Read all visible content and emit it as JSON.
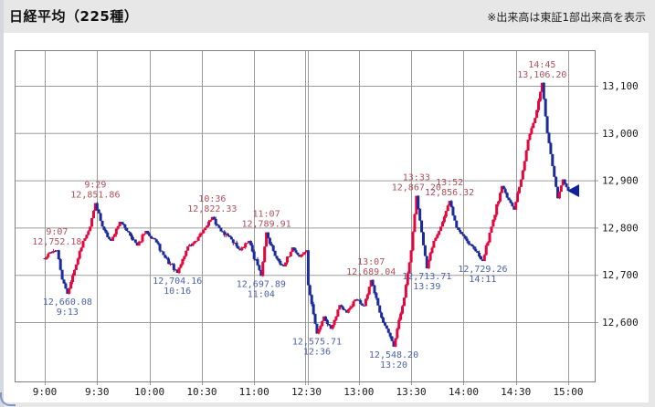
{
  "header": {
    "title": "日経平均（225種）",
    "note": "※出来高は東証1部出来高を表示"
  },
  "chart_data": {
    "type": "candlestick",
    "title": "日経平均（225種）",
    "interval_minutes": 1,
    "sessions": [
      {
        "start": "9:00",
        "end": "11:30"
      },
      {
        "start": "12:30",
        "end": "15:00"
      }
    ],
    "x_axis": {
      "ticks": [
        "9:00",
        "9:30",
        "10:00",
        "10:30",
        "11:00",
        "12:30",
        "13:00",
        "13:30",
        "14:00",
        "14:30",
        "15:00"
      ],
      "session_divider_tick": "12:30"
    },
    "y_axis": {
      "ticks": [
        "13,100",
        "13,000",
        "12,900",
        "12,800",
        "12,700",
        "12,600"
      ],
      "values": [
        13100,
        13000,
        12900,
        12800,
        12700,
        12600
      ],
      "side": "right"
    },
    "ylim": [
      12475,
      13175
    ],
    "grid": true,
    "colors": {
      "up": "#e4063c",
      "down": "#1b2b9e",
      "grid": "#9b9b9b",
      "border": "#808080",
      "tick": "#555555",
      "annotation_high": "#b04f58",
      "annotation_low": "#4c61b0",
      "marker": "#10219a"
    },
    "annotations": [
      {
        "type": "high",
        "time": "9:07",
        "price": 12752.18,
        "price_label": "12,752.18"
      },
      {
        "type": "low",
        "time": "9:13",
        "price": 12660.08,
        "price_label": "12,660.08"
      },
      {
        "type": "high",
        "time": "9:29",
        "price": 12851.86,
        "price_label": "12,851.86"
      },
      {
        "type": "low",
        "time": "10:16",
        "price": 12704.16,
        "price_label": "12,704.16"
      },
      {
        "type": "high",
        "time": "10:36",
        "price": 12822.33,
        "price_label": "12,822.33"
      },
      {
        "type": "low",
        "time": "11:04",
        "price": 12697.89,
        "price_label": "12,697.89"
      },
      {
        "type": "high",
        "time": "11:07",
        "price": 12789.91,
        "price_label": "12,789.91"
      },
      {
        "type": "low",
        "time": "12:36",
        "price": 12575.71,
        "price_label": "12,575.71"
      },
      {
        "type": "high",
        "time": "13:07",
        "price": 12689.04,
        "price_label": "12,689.04"
      },
      {
        "type": "low",
        "time": "13:20",
        "price": 12548.2,
        "price_label": "12,548.20"
      },
      {
        "type": "high",
        "time": "13:33",
        "price": 12867.2,
        "price_label": "12,867.20"
      },
      {
        "type": "low",
        "time": "13:39",
        "price": 12713.71,
        "price_label": "12,713.71"
      },
      {
        "type": "high",
        "time": "13:52",
        "price": 12856.32,
        "price_label": "12,856.32"
      },
      {
        "type": "low",
        "time": "14:11",
        "price": 12729.26,
        "price_label": "12,729.26"
      },
      {
        "type": "high",
        "time": "14:45",
        "price": 13106.2,
        "price_label": "13,106.20"
      }
    ],
    "path_anchors": [
      [
        "9:00",
        12733
      ],
      [
        "9:03",
        12748
      ],
      [
        "9:07",
        12752.18
      ],
      [
        "9:10",
        12690
      ],
      [
        "9:13",
        12660.08
      ],
      [
        "9:18",
        12722
      ],
      [
        "9:22",
        12772
      ],
      [
        "9:26",
        12802
      ],
      [
        "9:29",
        12851.86
      ],
      [
        "9:33",
        12802
      ],
      [
        "9:38",
        12772
      ],
      [
        "9:43",
        12812
      ],
      [
        "9:48",
        12790
      ],
      [
        "9:53",
        12762
      ],
      [
        "9:58",
        12793
      ],
      [
        "10:03",
        12775
      ],
      [
        "10:08",
        12742
      ],
      [
        "10:16",
        12704.16
      ],
      [
        "10:22",
        12760
      ],
      [
        "10:27",
        12772
      ],
      [
        "10:32",
        12800
      ],
      [
        "10:36",
        12822.33
      ],
      [
        "10:41",
        12792
      ],
      [
        "10:46",
        12780
      ],
      [
        "10:52",
        12752
      ],
      [
        "10:57",
        12772
      ],
      [
        "11:04",
        12697.89
      ],
      [
        "11:07",
        12789.91
      ],
      [
        "11:12",
        12740
      ],
      [
        "11:17",
        12718
      ],
      [
        "11:22",
        12758
      ],
      [
        "11:26",
        12738
      ],
      [
        "11:30",
        12752
      ],
      [
        "12:31",
        12678
      ],
      [
        "12:36",
        12575.71
      ],
      [
        "12:40",
        12612
      ],
      [
        "12:44",
        12586
      ],
      [
        "12:49",
        12636
      ],
      [
        "12:53",
        12620
      ],
      [
        "12:58",
        12648
      ],
      [
        "13:03",
        12634
      ],
      [
        "13:07",
        12689.04
      ],
      [
        "13:12",
        12620
      ],
      [
        "13:16",
        12586
      ],
      [
        "13:20",
        12548.2
      ],
      [
        "13:26",
        12652
      ],
      [
        "13:30",
        12752
      ],
      [
        "13:33",
        12867.2
      ],
      [
        "13:36",
        12790
      ],
      [
        "13:39",
        12713.71
      ],
      [
        "13:43",
        12772
      ],
      [
        "13:47",
        12802
      ],
      [
        "13:52",
        12856.32
      ],
      [
        "13:56",
        12800
      ],
      [
        "14:00",
        12782
      ],
      [
        "14:05",
        12760
      ],
      [
        "14:11",
        12729.26
      ],
      [
        "14:16",
        12802
      ],
      [
        "14:22",
        12888
      ],
      [
        "14:26",
        12858
      ],
      [
        "14:29",
        12838
      ],
      [
        "14:33",
        12902
      ],
      [
        "14:37",
        12986
      ],
      [
        "14:41",
        13032
      ],
      [
        "14:45",
        13106.2
      ],
      [
        "14:48",
        13000
      ],
      [
        "14:51",
        12930
      ],
      [
        "14:54",
        12862
      ],
      [
        "14:57",
        12902
      ],
      [
        "15:00",
        12878
      ]
    ],
    "last_price_marker": {
      "price": 12878,
      "shape": "left-triangle"
    }
  }
}
